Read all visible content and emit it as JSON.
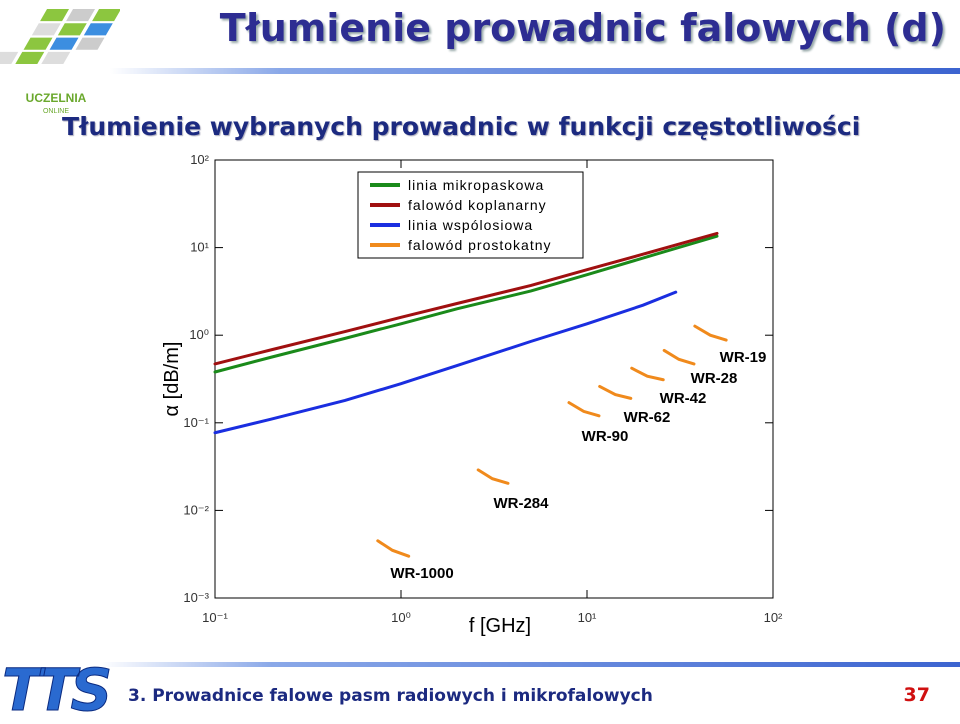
{
  "header": {
    "title": "Tłumienie prowadnic falowych (d)",
    "subtitle": "Tłumienie wybranych prowadnic w funkcji częstotliwości"
  },
  "logo": {
    "name": "UCZELNIA",
    "tagline": "ONLINE",
    "footer_logo": "TTS"
  },
  "footer": {
    "text": "3. Prowadnice falowe pasm radiowych i mikrofalowych",
    "page": "37"
  },
  "chart_data": {
    "type": "line",
    "log_x": true,
    "log_y": true,
    "xlabel": "f [GHz]",
    "ylabel": "α [dB/m]",
    "xlim": [
      0.1,
      100
    ],
    "ylim": [
      0.001,
      100
    ],
    "xticks": [
      {
        "value": 0.1,
        "label": "10⁻¹"
      },
      {
        "value": 1,
        "label": "10⁰"
      },
      {
        "value": 10,
        "label": "10¹"
      },
      {
        "value": 100,
        "label": "10²"
      }
    ],
    "yticks": [
      {
        "value": 0.001,
        "label": "10⁻³"
      },
      {
        "value": 0.01,
        "label": "10⁻²"
      },
      {
        "value": 0.1,
        "label": "10⁻¹"
      },
      {
        "value": 1,
        "label": "10⁰"
      },
      {
        "value": 10,
        "label": "10¹"
      },
      {
        "value": 100,
        "label": "10²"
      }
    ],
    "legend": "upper left",
    "series": [
      {
        "name": "linia mikropaskowa",
        "color": "#1a8a1a",
        "x": [
          0.1,
          0.2,
          0.5,
          1,
          2,
          5,
          10,
          20,
          50
        ],
        "values": [
          0.38,
          0.56,
          0.92,
          1.35,
          2.0,
          3.2,
          4.9,
          7.6,
          13.5
        ]
      },
      {
        "name": "falowód koplanarny",
        "color": "#a01010",
        "x": [
          0.1,
          0.2,
          0.5,
          1,
          2,
          5,
          10,
          20,
          50
        ],
        "values": [
          0.47,
          0.68,
          1.1,
          1.6,
          2.3,
          3.7,
          5.6,
          8.4,
          14.5
        ]
      },
      {
        "name": "linia wspólosiowa",
        "color": "#1a2ee0",
        "x": [
          0.1,
          0.2,
          0.5,
          1,
          2,
          5,
          10,
          20,
          30
        ],
        "values": [
          0.077,
          0.11,
          0.18,
          0.28,
          0.45,
          0.85,
          1.35,
          2.2,
          3.1
        ]
      },
      {
        "name": "falowód prostokatny",
        "color": "#f08a1c",
        "x": [
          0.75,
          0.9,
          1.1,
          null,
          2.6,
          3.1,
          3.76,
          null,
          8.0,
          9.6,
          11.6,
          null,
          11.7,
          14.2,
          17.2,
          null,
          17.4,
          21.1,
          25.7,
          null,
          26,
          31.2,
          37.6,
          null,
          38,
          46,
          56
        ],
        "values": [
          0.0045,
          0.0035,
          0.003,
          null,
          0.029,
          0.023,
          0.0204,
          null,
          0.17,
          0.135,
          0.12,
          null,
          0.26,
          0.21,
          0.19,
          null,
          0.42,
          0.34,
          0.31,
          null,
          0.67,
          0.53,
          0.47,
          null,
          1.27,
          1.0,
          0.88
        ]
      }
    ],
    "annotations": [
      "WR-1000",
      "WR-284",
      "WR-90",
      "WR-62",
      "WR-42",
      "WR-28",
      "WR-19"
    ]
  }
}
